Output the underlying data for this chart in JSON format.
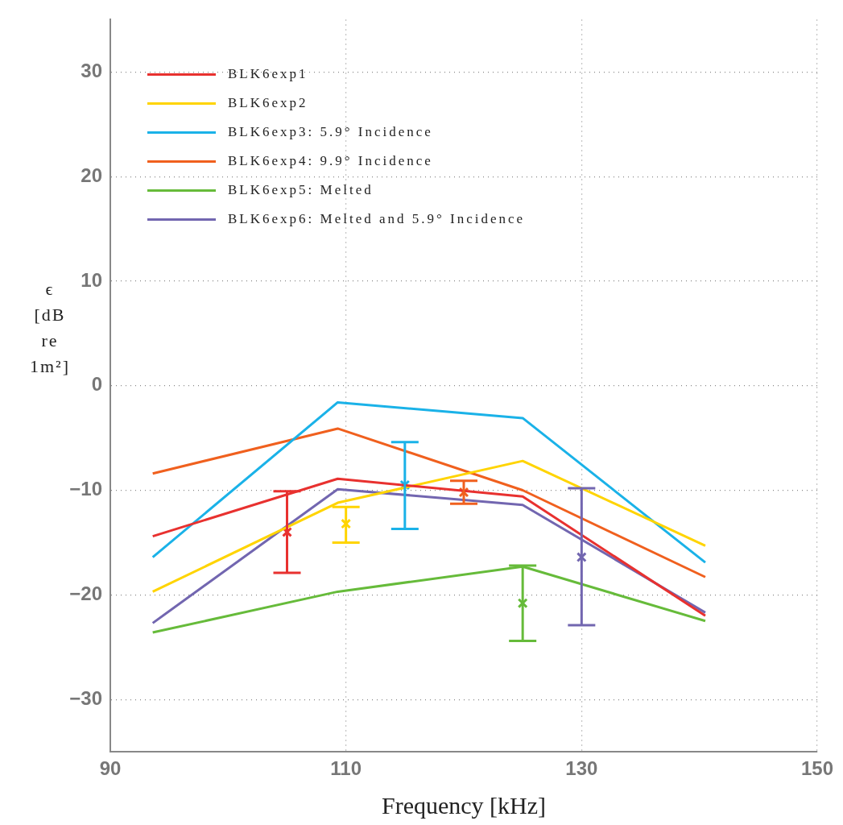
{
  "chart_data": {
    "type": "line",
    "xlabel": "Frequency [kHz]",
    "ylabel": "ϵ [dB re 1m²]",
    "xlim": [
      90,
      150
    ],
    "xticks": [
      90,
      110,
      130,
      150
    ],
    "ylim": [
      -35,
      35
    ],
    "yticks": [
      -30,
      -20,
      -10,
      0,
      10,
      20,
      30
    ],
    "grid": true,
    "legend": "top left",
    "series": [
      {
        "name": "BLK6exp1",
        "color": "#e8312f",
        "marker": "none",
        "x": [
          93.6,
          109.3,
          125,
          140.5
        ],
        "values": [
          -14.4,
          -8.9,
          -10.6,
          -22.0
        ]
      },
      {
        "name": "BLK6exp2",
        "color": "#ffd400",
        "marker": "none",
        "x": [
          93.6,
          109.3,
          125,
          140.5
        ],
        "values": [
          -19.7,
          -11.2,
          -7.2,
          -15.3
        ]
      },
      {
        "name": "BLK6exp3: 5.9° Incidence",
        "color": "#1ab2e8",
        "marker": "none",
        "x": [
          93.6,
          109.3,
          125,
          140.5
        ],
        "values": [
          -16.4,
          -1.6,
          -3.1,
          -16.9
        ]
      },
      {
        "name": "BLK6exp4: 9.9° Incidence",
        "color": "#f0601e",
        "marker": "none",
        "x": [
          93.6,
          109.3,
          125,
          140.5
        ],
        "values": [
          -8.4,
          -4.1,
          -10.0,
          -18.3
        ]
      },
      {
        "name": "BLK6exp5: Melted",
        "color": "#66bb3a",
        "marker": "none",
        "x": [
          93.6,
          109.3,
          125,
          140.5
        ],
        "values": [
          -23.6,
          -19.7,
          -17.3,
          -22.5
        ]
      },
      {
        "name": "BLK6exp6: Melted and 5.9° Incidence",
        "color": "#7266b0",
        "marker": "none",
        "x": [
          93.6,
          109.3,
          125,
          140.5
        ],
        "values": [
          -22.7,
          -9.9,
          -11.4,
          -21.7
        ]
      },
      {
        "type": "scatter",
        "color": "#e8312f",
        "marker": "cross",
        "x": [
          105
        ],
        "values": [
          -14.0
        ],
        "errors": [
          [
            -17.9,
            -10.1
          ]
        ]
      },
      {
        "type": "scatter",
        "color": "#ffd400",
        "marker": "cross",
        "x": [
          110
        ],
        "values": [
          -13.2
        ],
        "errors": [
          [
            -15.0,
            -11.6
          ]
        ]
      },
      {
        "type": "scatter",
        "color": "#1ab2e8",
        "marker": "cross",
        "x": [
          115
        ],
        "values": [
          -9.5
        ],
        "errors": [
          [
            -13.7,
            -5.4
          ]
        ]
      },
      {
        "type": "scatter",
        "color": "#f0601e",
        "marker": "cross",
        "x": [
          120
        ],
        "values": [
          -10.2
        ],
        "errors": [
          [
            -11.3,
            -9.1
          ]
        ]
      },
      {
        "type": "scatter",
        "color": "#66bb3a",
        "marker": "cross",
        "x": [
          125
        ],
        "values": [
          -20.8
        ],
        "errors": [
          [
            -24.4,
            -17.2
          ]
        ]
      },
      {
        "type": "scatter",
        "color": "#7266b0",
        "marker": "cross",
        "x": [
          130
        ],
        "values": [
          -16.4
        ],
        "errors": [
          [
            -22.9,
            -9.8
          ]
        ]
      }
    ]
  }
}
